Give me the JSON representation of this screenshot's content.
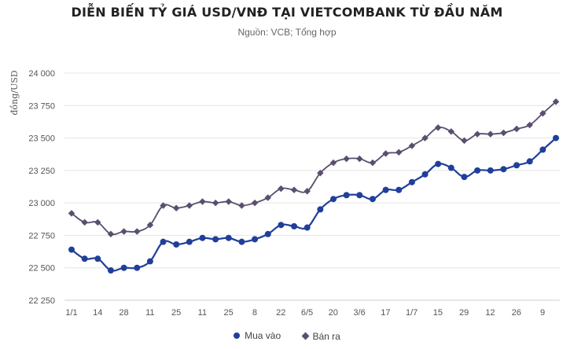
{
  "chart_data": {
    "type": "line",
    "title": "DIỄN BIẾN TỶ GIÁ USD/VNĐ TẠI VIETCOMBANK TỪ ĐẦU NĂM",
    "subtitle": "Nguồn: VCB; Tổng hợp",
    "ylabel": "đồng/USD",
    "xlabel": "",
    "ylim": [
      22250,
      24000
    ],
    "yticks": [
      22250,
      22500,
      22750,
      23000,
      23250,
      23500,
      23750,
      24000
    ],
    "ytick_labels": [
      "22 250",
      "22 500",
      "22 750",
      "23 000",
      "23 250",
      "23 500",
      "23 750",
      "24 000"
    ],
    "xtick_labels": [
      "1/1",
      "14",
      "28",
      "11",
      "25",
      "11",
      "25",
      "8",
      "22",
      "6/5",
      "20",
      "3/6",
      "17",
      "1/7",
      "15",
      "29",
      "12",
      "26",
      "9"
    ],
    "grid": true,
    "legend_position": "bottom",
    "series": [
      {
        "name": "Mua vào",
        "color": "#1f3f9a",
        "marker": "circle",
        "values": [
          22640,
          22570,
          22570,
          22480,
          22500,
          22500,
          22550,
          22700,
          22680,
          22700,
          22730,
          22720,
          22730,
          22700,
          22720,
          22760,
          22830,
          22820,
          22810,
          22950,
          23030,
          23060,
          23060,
          23030,
          23100,
          23100,
          23160,
          23220,
          23300,
          23270,
          23200,
          23250,
          23250,
          23260,
          23290,
          23320,
          23410,
          23500
        ]
      },
      {
        "name": "Bán ra",
        "color": "#5a4f6e",
        "marker": "diamond",
        "values": [
          22920,
          22850,
          22850,
          22760,
          22780,
          22780,
          22830,
          22980,
          22960,
          22980,
          23010,
          23000,
          23010,
          22980,
          23000,
          23040,
          23110,
          23100,
          23090,
          23230,
          23310,
          23340,
          23340,
          23310,
          23380,
          23390,
          23440,
          23500,
          23580,
          23550,
          23480,
          23530,
          23530,
          23540,
          23570,
          23600,
          23690,
          23780
        ]
      }
    ]
  }
}
